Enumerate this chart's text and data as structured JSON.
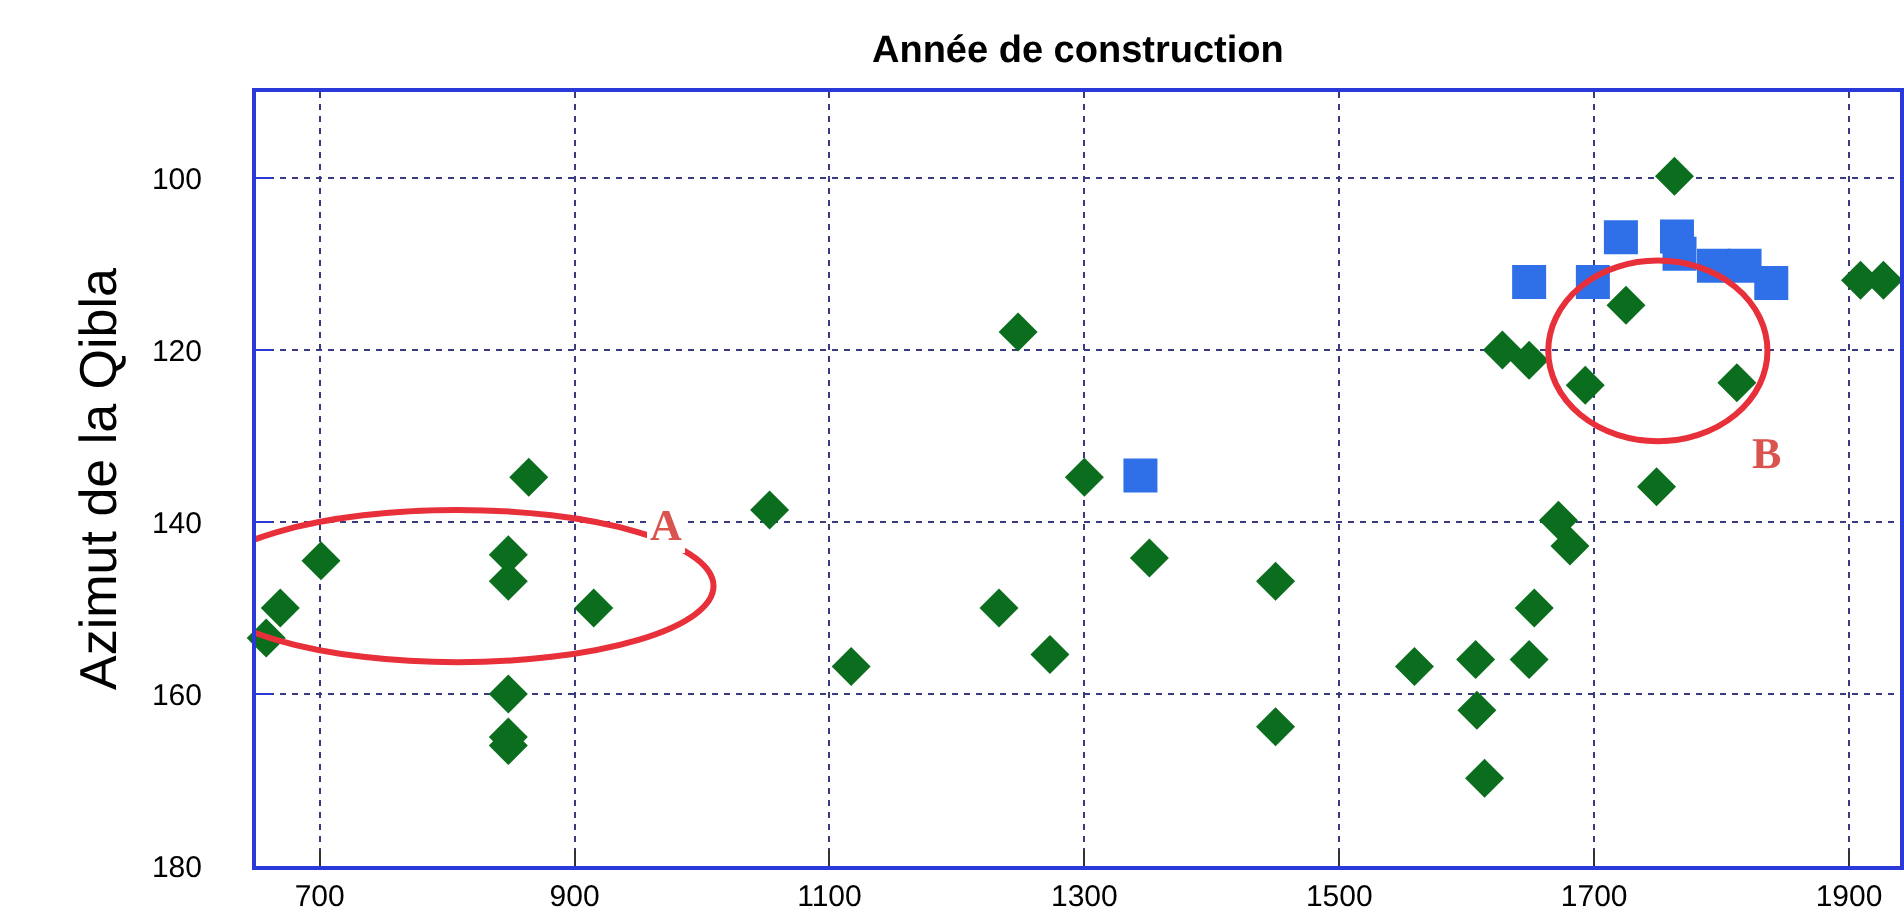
{
  "chart_data": {
    "type": "scatter",
    "title": "Année de construction",
    "ylabel": "Azimut de la Qibla",
    "xlim": [
      650,
      1940
    ],
    "xticks": [
      700,
      900,
      1100,
      1300,
      1500,
      1700,
      1900
    ],
    "ylim": [
      180,
      90
    ],
    "yticks": [
      100,
      120,
      140,
      160,
      180
    ],
    "grid": true,
    "annotations": [
      "A",
      "B"
    ],
    "series": [
      {
        "color": "#0b6e1e",
        "marker": "diamond",
        "x": [
          669,
          658,
          701,
          864,
          848,
          848,
          915,
          848,
          848,
          848,
          1053,
          1117,
          1248,
          1233,
          1273,
          1300,
          1351,
          1450,
          1450,
          1559,
          1607,
          1608,
          1614,
          1628,
          1649,
          1653,
          1649,
          1672,
          1681,
          1693,
          1725,
          1763,
          1749,
          1812,
          1909,
          1927
        ],
        "values": [
          150,
          153.5,
          144.5,
          134.8,
          143.8,
          146.9,
          150,
          160,
          165,
          166,
          138.6,
          156.8,
          117.9,
          150,
          155.4,
          134.8,
          144.2,
          146.9,
          163.8,
          156.8,
          156,
          161.9,
          169.8,
          120,
          121.2,
          150,
          156,
          139.8,
          142.8,
          124.1,
          114.8,
          99.8,
          135.9,
          123.8,
          111.9,
          111.9
        ]
      },
      {
        "color": "#2f6fe8",
        "marker": "square",
        "x": [
          1344,
          1649,
          1699,
          1721,
          1765,
          1767,
          1794,
          1818,
          1839
        ],
        "values": [
          134.6,
          112.1,
          112.1,
          106.9,
          106.8,
          108.8,
          110.2,
          110.2,
          112.2
        ]
      }
    ]
  }
}
